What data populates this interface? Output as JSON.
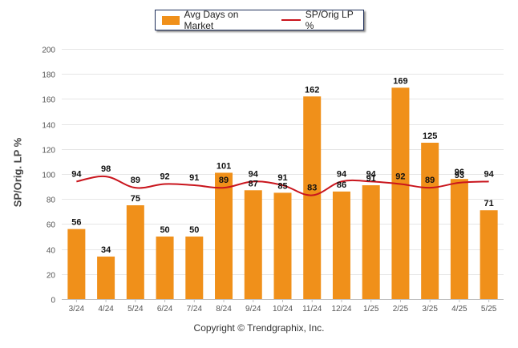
{
  "chart_data": {
    "type": "bar",
    "categories": [
      "3/24",
      "4/24",
      "5/24",
      "6/24",
      "7/24",
      "8/24",
      "9/24",
      "10/24",
      "11/24",
      "12/24",
      "1/25",
      "2/25",
      "3/25",
      "4/25",
      "5/25"
    ],
    "series": [
      {
        "name": "Avg Days on Market",
        "type": "bar",
        "color": "#f0901a",
        "values": [
          56,
          34,
          75,
          50,
          50,
          101,
          87,
          85,
          162,
          86,
          91,
          169,
          125,
          96,
          71
        ]
      },
      {
        "name": "SP/Orig LP %",
        "type": "line",
        "color": "#c9151d",
        "values": [
          94,
          98,
          89,
          92,
          91,
          89,
          94,
          91,
          83,
          94,
          94,
          92,
          89,
          93,
          94
        ]
      }
    ],
    "ylabel": "SP/Orig. LP %",
    "ylim": [
      0,
      200
    ],
    "yticks": [
      0,
      20,
      40,
      60,
      80,
      100,
      120,
      140,
      160,
      180,
      200
    ],
    "grid": true,
    "legend_position": "top-center"
  },
  "legend": {
    "bar_label": "Avg Days on Market",
    "line_label": "SP/Orig LP %"
  },
  "footer": {
    "copyright": "Copyright © Trendgraphix, Inc."
  }
}
